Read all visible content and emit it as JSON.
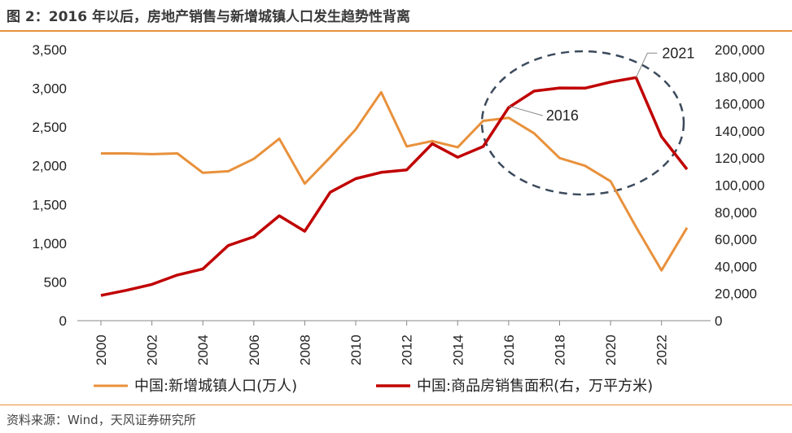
{
  "header": {
    "title": "图 2：2016 年以后，房地产销售与新增城镇人口发生趋势性背离"
  },
  "footer": {
    "source": "资料来源：Wind，天风证券研究所"
  },
  "colors": {
    "accent_rule": "#e8913c",
    "series_population": "#e8913c",
    "series_sales": "#c00000",
    "ellipse": "#3b4a5c"
  },
  "chart_data": {
    "type": "line",
    "title": "",
    "x": [
      2000,
      2001,
      2002,
      2003,
      2004,
      2005,
      2006,
      2007,
      2008,
      2009,
      2010,
      2011,
      2012,
      2013,
      2014,
      2015,
      2016,
      2017,
      2018,
      2019,
      2020,
      2021,
      2022,
      2023
    ],
    "x_tick_labels": [
      "2000",
      "2002",
      "2004",
      "2006",
      "2008",
      "2010",
      "2012",
      "2014",
      "2016",
      "2018",
      "2020",
      "2022"
    ],
    "y_left": {
      "range": [
        0,
        3500
      ],
      "tick_labels": [
        "0",
        "500",
        "1,000",
        "1,500",
        "2,000",
        "2,500",
        "3,000",
        "3,500"
      ]
    },
    "y_right": {
      "range": [
        0,
        200000
      ],
      "tick_labels": [
        "0",
        "20,000",
        "40,000",
        "60,000",
        "80,000",
        "100,000",
        "120,000",
        "140,000",
        "160,000",
        "180,000",
        "200,000"
      ]
    },
    "series": [
      {
        "name": "中国:新增城镇人口(万人)",
        "axis": "left",
        "color": "#e8913c",
        "values": [
          2160,
          2160,
          2150,
          2160,
          1910,
          1930,
          2090,
          2350,
          1770,
          2110,
          2470,
          2950,
          2250,
          2320,
          2240,
          2580,
          2620,
          2420,
          2100,
          2000,
          1800,
          1210,
          650,
          1200
        ]
      },
      {
        "name": "中国:商品房销售面积(右，万平方米)",
        "axis": "right",
        "color": "#c00000",
        "values": [
          18600,
          22400,
          26800,
          33700,
          38200,
          55500,
          61900,
          77400,
          66000,
          94800,
          104800,
          109400,
          111300,
          130600,
          120600,
          128500,
          157300,
          169400,
          171700,
          171600,
          176100,
          179400,
          135800,
          111700
        ]
      }
    ],
    "annotations": [
      {
        "text": "2016",
        "at_x": 2016
      },
      {
        "text": "2021",
        "at_x": 2021
      }
    ],
    "grid": false,
    "legend_position": "bottom"
  }
}
